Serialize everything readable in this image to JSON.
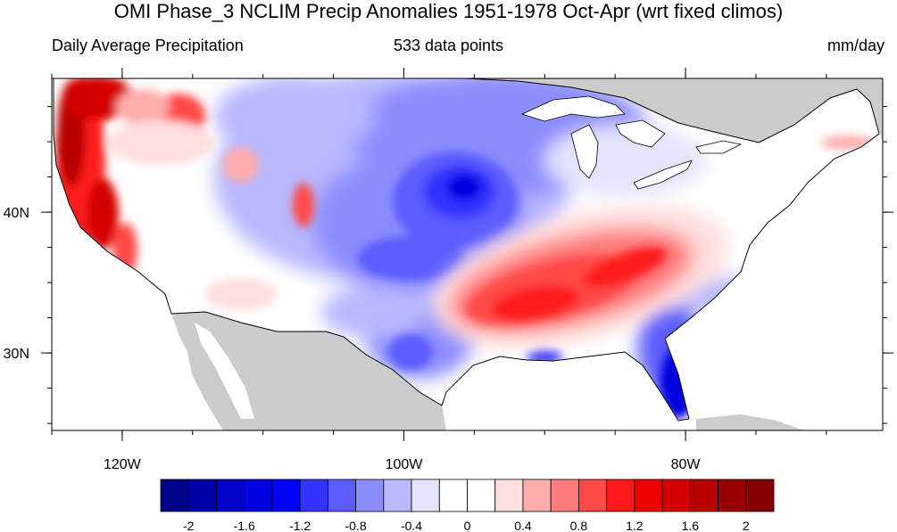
{
  "title": "OMI Phase_3 NCLIM Precip Anomalies 1951-1978 Oct-Apr (wrt fixed climos)",
  "subtitle_left": "Daily Average Precipitation",
  "subtitle_center": "533 data points",
  "subtitle_right": "mm/day",
  "map": {
    "lon_range": [
      -125,
      -66
    ],
    "lat_range": [
      24.5,
      49.5
    ],
    "lon_ticks": [
      {
        "value": -120,
        "label": "120W"
      },
      {
        "value": -100,
        "label": "100W"
      },
      {
        "value": -80,
        "label": "80W"
      }
    ],
    "lat_ticks": [
      {
        "value": 40,
        "label": "40N"
      },
      {
        "value": 30,
        "label": "30N"
      }
    ],
    "land_outside_color": "#cccccc",
    "ocean_color": "#ffffff",
    "anomaly_regions": [
      {
        "name": "west-coast-wet",
        "level": 2.0
      },
      {
        "name": "northern-rockies-wet",
        "level": 1.4
      },
      {
        "name": "great-plains-dry",
        "level": -1.0
      },
      {
        "name": "central-plains-core-dry",
        "level": -1.8
      },
      {
        "name": "southeast-wet",
        "level": 1.2
      },
      {
        "name": "florida-dry",
        "level": -1.8
      },
      {
        "name": "southern-texas-dry",
        "level": -0.8
      }
    ]
  },
  "colorbar": {
    "colors": [
      "#00008a",
      "#0000a8",
      "#0000c6",
      "#0000e0",
      "#0000ff",
      "#3333ff",
      "#5c5cff",
      "#8c8cff",
      "#b8b8ff",
      "#e4e4ff",
      "#ffffff",
      "#ffffff",
      "#ffdede",
      "#ffacac",
      "#ff7c7c",
      "#ff4a4a",
      "#ff1a1a",
      "#ec0000",
      "#d40000",
      "#b80000",
      "#9a0000",
      "#840000"
    ],
    "labels": [
      "-2",
      "-1.6",
      "-1.2",
      "-0.8",
      "-0.4",
      "0",
      "0.4",
      "0.8",
      "1.2",
      "1.6",
      "2"
    ]
  }
}
